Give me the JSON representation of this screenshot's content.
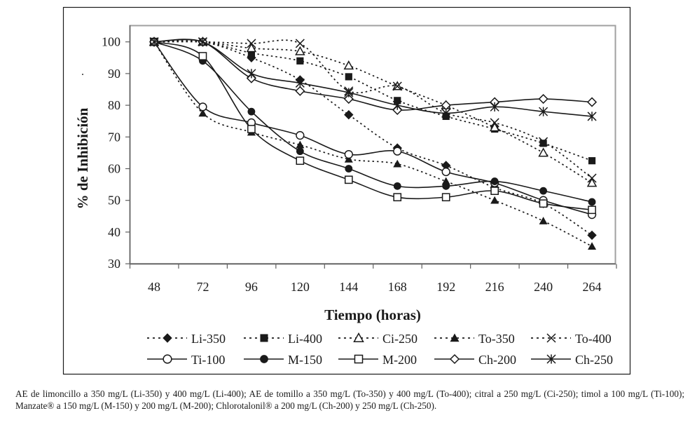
{
  "chart_data": {
    "type": "line",
    "title": "",
    "xlabel": "Tiempo (horas)",
    "ylabel": "% de Inhibición",
    "x": [
      48,
      72,
      96,
      120,
      144,
      168,
      192,
      216,
      240,
      264
    ],
    "x_tick_labels": [
      "48",
      "72",
      "96",
      "120",
      "144",
      "168",
      "192",
      "216",
      "240",
      "264"
    ],
    "y_tick_labels": [
      "30",
      "40",
      "50",
      "60",
      "70",
      "80",
      "90",
      "100"
    ],
    "y_ticks": [
      30,
      40,
      50,
      60,
      70,
      80,
      90,
      100
    ],
    "ylim": [
      30,
      100
    ],
    "grid": false,
    "legend_position": "bottom",
    "series": [
      {
        "name": "Li-350",
        "marker": "diamond-filled",
        "line": "dotted",
        "values": [
          100,
          100,
          95,
          88,
          77,
          66.5,
          61,
          54,
          49,
          39
        ]
      },
      {
        "name": "Li-400",
        "marker": "square-filled",
        "line": "dotted",
        "values": [
          100,
          100,
          96.5,
          94,
          89,
          81.5,
          76.5,
          72.5,
          68,
          62.5
        ]
      },
      {
        "name": "Ci-250",
        "marker": "triangle-open",
        "line": "dotted",
        "values": [
          100,
          100,
          98,
          97,
          92.5,
          86,
          80,
          73,
          65,
          55.5
        ]
      },
      {
        "name": "To-350",
        "marker": "triangle-filled",
        "line": "dotted",
        "values": [
          100,
          77.5,
          71.5,
          67.5,
          63,
          61.5,
          56,
          50,
          43.5,
          35.5
        ]
      },
      {
        "name": "To-400",
        "marker": "x",
        "line": "dotted",
        "values": [
          100,
          100,
          99.5,
          99.5,
          84.5,
          86,
          77.5,
          74.5,
          68.5,
          57
        ]
      },
      {
        "name": "Ti-100",
        "marker": "circle-open",
        "line": "solid",
        "values": [
          100,
          79.5,
          74.5,
          70.5,
          64.5,
          65.5,
          59,
          55.5,
          50,
          45.5
        ]
      },
      {
        "name": "M-150",
        "marker": "circle-filled",
        "line": "solid",
        "values": [
          100,
          94,
          78,
          65.5,
          60,
          54.5,
          54.5,
          56,
          53,
          49.5
        ]
      },
      {
        "name": "M-200",
        "marker": "square-open",
        "line": "solid",
        "values": [
          100,
          95.5,
          72.5,
          62.5,
          56.5,
          51,
          51,
          53,
          49,
          47
        ]
      },
      {
        "name": "Ch-200",
        "marker": "diamond-open",
        "line": "solid",
        "values": [
          100,
          100,
          88.5,
          84.5,
          82,
          78.5,
          80,
          81,
          82,
          81
        ]
      },
      {
        "name": "Ch-250",
        "marker": "asterisk",
        "line": "solid",
        "values": [
          100,
          100,
          90,
          87,
          84,
          80,
          77.5,
          79.5,
          78,
          76.5
        ]
      }
    ],
    "colors": {
      "ink": "#1a1a1a",
      "plot_border": "#a0a0a0",
      "frame": "#1a1a1a"
    }
  },
  "caption": "AE de limoncillo a 350 mg/L (Li-350) y 400 mg/L (Li-400); AE de tomillo a 350 mg/L (To-350) y 400 mg/L (To-400); citral a 250 mg/L (Ci-250); timol a 100 mg/L (Ti-100); Manzate® a 150 mg/L (M-150) y 200 mg/L (M-200); Chlorotalonil® a 200 mg/L (Ch-200) y 250 mg/L (Ch-250).",
  "stray_mark": "."
}
